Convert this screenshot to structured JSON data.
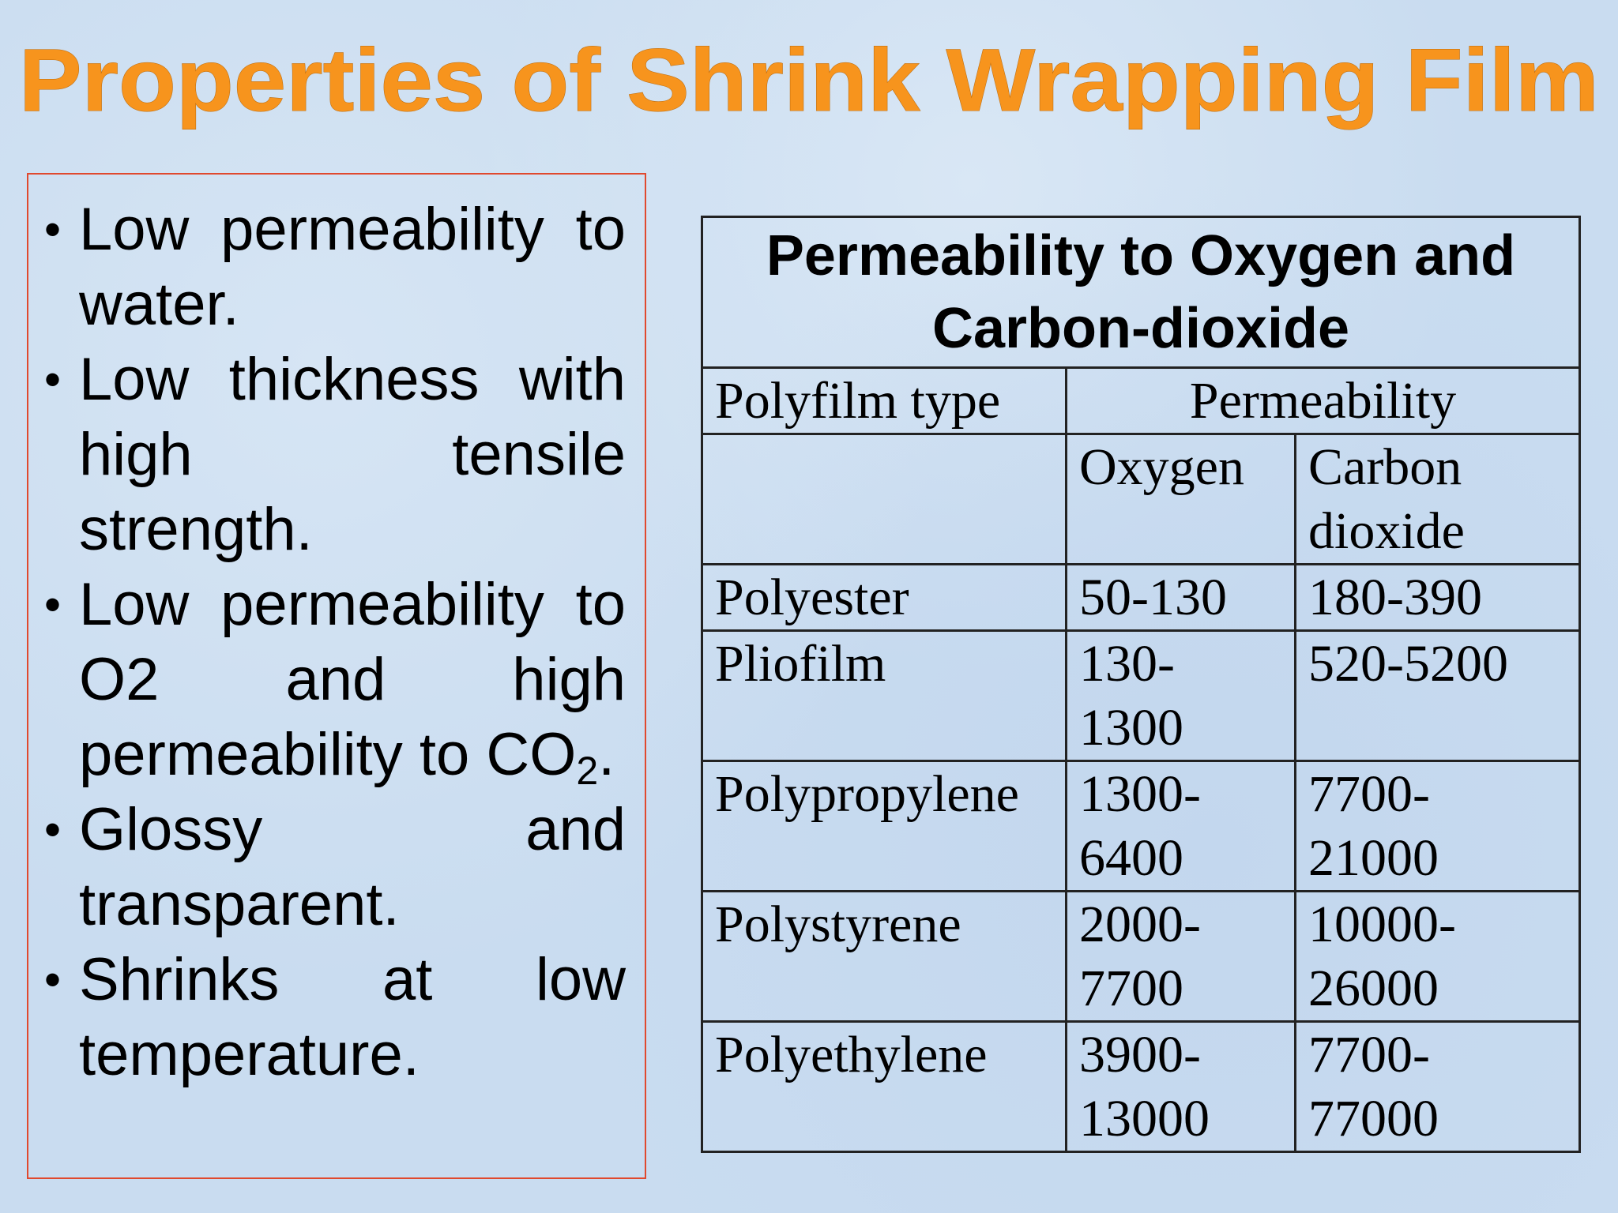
{
  "title": "Properties of Shrink Wrapping Film",
  "bullets": [
    {
      "text": "Low permeability to water."
    },
    {
      "text": "Low thickness with high tensile strength."
    },
    {
      "text": "Low permeability to O2 and high permeability to CO",
      "sub": "2",
      "end": "."
    },
    {
      "text": "Glossy and transparent."
    },
    {
      "text": "Shrinks at low temperature."
    }
  ],
  "table": {
    "caption": "Permeability to Oxygen and Carbon-dioxide",
    "header": [
      "Polyfilm type",
      "Permeability"
    ],
    "subheader": [
      "Oxygen",
      "Carbon\ndioxide"
    ],
    "rows": [
      [
        "Polyester",
        "50-130",
        "180-390"
      ],
      [
        "Pliofilm",
        "130-\n1300",
        "520-5200"
      ],
      [
        "Polypropylene",
        "1300-\n6400",
        "7700-\n21000"
      ],
      [
        "Polystyrene",
        "2000-\n7700",
        "10000-\n26000"
      ],
      [
        "Polyethylene",
        "3900-\n13000",
        "7700-\n77000"
      ]
    ]
  }
}
